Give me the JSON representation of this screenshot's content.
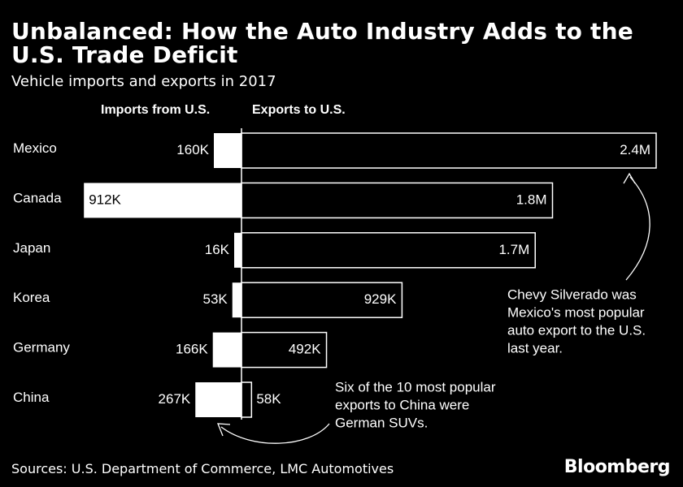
{
  "title": "Unbalanced: How the Auto Industry Adds to the U.S. Trade Deficit",
  "subtitle": "Vehicle imports and exports in 2017",
  "left_header": "Imports from U.S.",
  "right_header": "Exports to U.S.",
  "chart_data": {
    "type": "bar",
    "orientation": "horizontal-diverging",
    "categories": [
      "Mexico",
      "Canada",
      "Japan",
      "Korea",
      "Germany",
      "China"
    ],
    "series": [
      {
        "name": "Imports from U.S.",
        "values": [
          160000,
          912000,
          16000,
          53000,
          166000,
          267000
        ],
        "labels": [
          "160K",
          "912K",
          "16K",
          "53K",
          "166K",
          "267K"
        ]
      },
      {
        "name": "Exports to U.S.",
        "values": [
          2400000,
          1800000,
          1700000,
          929000,
          492000,
          58000
        ],
        "labels": [
          "2.4M",
          "1.8M",
          "1.7M",
          "929K",
          "492K",
          "58K"
        ]
      }
    ],
    "annotations": [
      {
        "category": "Mexico",
        "lines": [
          "Chevy Silverado was",
          "Mexico's most popular",
          "auto export to the U.S.",
          "last year."
        ]
      },
      {
        "category": "China",
        "lines": [
          "Six of the 10 most popular",
          "exports to China were",
          "German SUVs."
        ]
      }
    ],
    "grid": false,
    "legend": "none"
  },
  "source": "Sources: U.S. Department of Commerce, LMC Automotives",
  "brand": "Bloomberg",
  "colors": {
    "background": "#000000",
    "imports": "#ffffff",
    "exports_outline": "#ffffff",
    "text": "#ffffff"
  }
}
